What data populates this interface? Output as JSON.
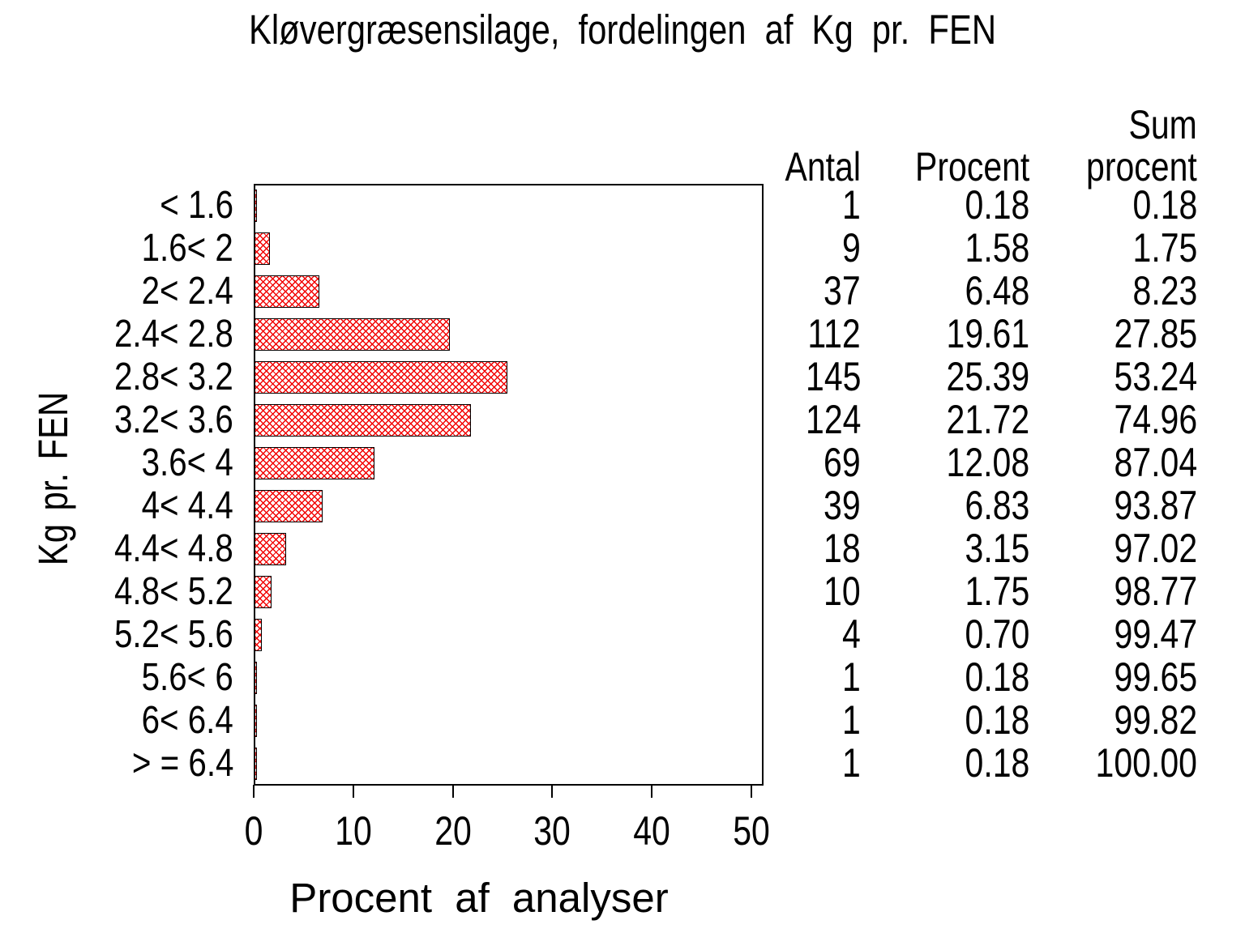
{
  "title": "Kløvergræsensilage, fordelingen af Kg pr. FEN",
  "chart_data": {
    "type": "bar",
    "orientation": "horizontal",
    "title": "Kløvergræsensilage, fordelingen af Kg pr. FEN",
    "xlabel": "Procent af analyser",
    "ylabel": "Kg pr. FEN",
    "xlim": [
      0,
      50
    ],
    "x_ticks": [
      0,
      10,
      20,
      30,
      40,
      50
    ],
    "grid": false,
    "bar_fill": "crosshatch",
    "bar_color": "#f20000",
    "bar_border_color": "#000000",
    "categories": [
      "< 1.6",
      "1.6< 2",
      "2< 2.4",
      "2.4< 2.8",
      "2.8< 3.2",
      "3.2< 3.6",
      "3.6< 4",
      "4< 4.4",
      "4.4< 4.8",
      "4.8< 5.2",
      "5.2< 5.6",
      "5.6< 6",
      "6< 6.4",
      "> = 6.4"
    ],
    "plotted_series": "Procent",
    "series": [
      {
        "name": "Antal",
        "values": [
          1,
          9,
          37,
          112,
          145,
          124,
          69,
          39,
          18,
          10,
          4,
          1,
          1,
          1
        ]
      },
      {
        "name": "Procent",
        "values": [
          0.18,
          1.58,
          6.48,
          19.61,
          25.39,
          21.72,
          12.08,
          6.83,
          3.15,
          1.75,
          0.7,
          0.18,
          0.18,
          0.18
        ]
      },
      {
        "name": "Sum procent",
        "values": [
          0.18,
          1.75,
          8.23,
          27.85,
          53.24,
          74.96,
          87.04,
          93.87,
          97.02,
          98.77,
          99.47,
          99.65,
          99.82,
          100.0
        ]
      }
    ]
  },
  "table": {
    "headers": {
      "antal": "Antal",
      "procent": "Procent",
      "sum_line1": "Sum",
      "sum_line2": "procent"
    },
    "rows": [
      {
        "category": "< 1.6",
        "antal": "1",
        "procent": "0.18",
        "sum": "0.18"
      },
      {
        "category": "1.6< 2",
        "antal": "9",
        "procent": "1.58",
        "sum": "1.75"
      },
      {
        "category": "2< 2.4",
        "antal": "37",
        "procent": "6.48",
        "sum": "8.23"
      },
      {
        "category": "2.4< 2.8",
        "antal": "112",
        "procent": "19.61",
        "sum": "27.85"
      },
      {
        "category": "2.8< 3.2",
        "antal": "145",
        "procent": "25.39",
        "sum": "53.24"
      },
      {
        "category": "3.2< 3.6",
        "antal": "124",
        "procent": "21.72",
        "sum": "74.96"
      },
      {
        "category": "3.6< 4",
        "antal": "69",
        "procent": "12.08",
        "sum": "87.04"
      },
      {
        "category": "4< 4.4",
        "antal": "39",
        "procent": "6.83",
        "sum": "93.87"
      },
      {
        "category": "4.4< 4.8",
        "antal": "18",
        "procent": "3.15",
        "sum": "97.02"
      },
      {
        "category": "4.8< 5.2",
        "antal": "10",
        "procent": "1.75",
        "sum": "98.77"
      },
      {
        "category": "5.2< 5.6",
        "antal": "4",
        "procent": "0.70",
        "sum": "99.47"
      },
      {
        "category": "5.6< 6",
        "antal": "1",
        "procent": "0.18",
        "sum": "99.65"
      },
      {
        "category": "6< 6.4",
        "antal": "1",
        "procent": "0.18",
        "sum": "99.82"
      },
      {
        "category": "> = 6.4",
        "antal": "1",
        "procent": "0.18",
        "sum": "100.00"
      }
    ]
  }
}
